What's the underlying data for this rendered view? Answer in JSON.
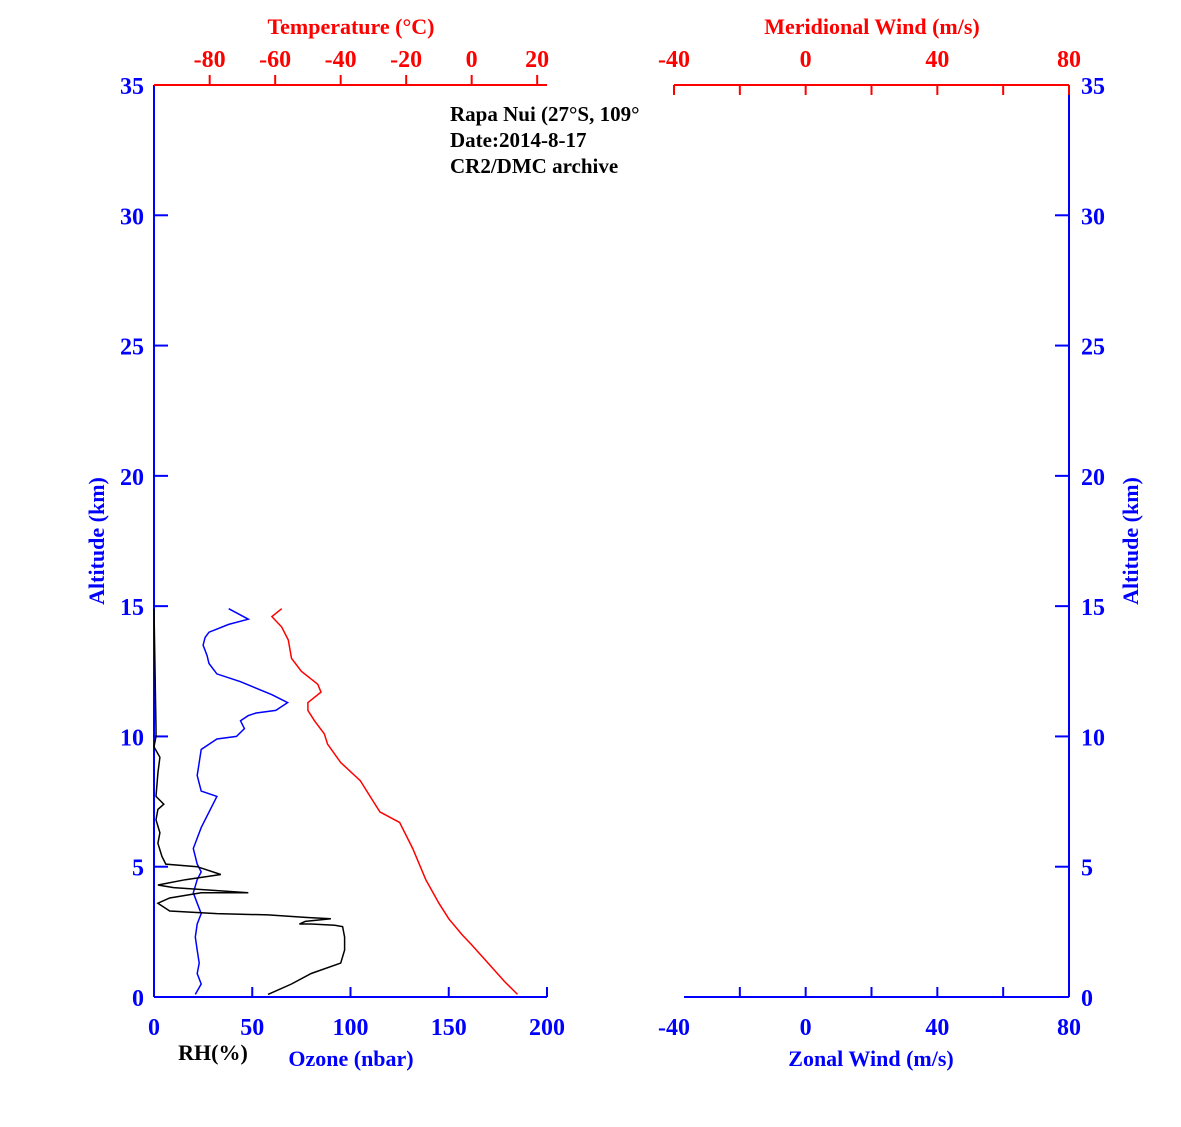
{
  "colors": {
    "axis_blue": "#0000ff",
    "axis_red": "#ff0000",
    "black": "#000000",
    "temperature_line": "#ff0000",
    "ozone_line": "#0000ff",
    "rh_line": "#000000"
  },
  "annotations": {
    "station": "Rapa Nui (27°S, 109°",
    "date": "Date:2014-8-17",
    "source": "CR2/DMC archive"
  },
  "chart_data": [
    {
      "type": "line",
      "panel": "left",
      "top_axis_label": "Temperature (°C)",
      "bottom_axis_label_rh": "RH(%)",
      "bottom_axis_label_ozone": "Ozone (nbar)",
      "left_axis_label": "Altitude (km)",
      "y_range": [
        0,
        35
      ],
      "y_ticks": [
        "0",
        "5",
        "10",
        "15",
        "20",
        "25",
        "30",
        "35"
      ],
      "top_x_range": [
        -97,
        23
      ],
      "top_ticks": [
        -80,
        -60,
        -40,
        -20,
        0,
        20
      ],
      "bottom_x_range": [
        0,
        200
      ],
      "bottom_ticks": [
        0,
        50,
        100,
        150,
        200
      ],
      "series": [
        {
          "name": "Temperature",
          "x": [
            14,
            10,
            5,
            0,
            -3,
            -7,
            -10,
            -14,
            -18,
            -22,
            -28,
            -30,
            -34,
            -40,
            -44,
            -45,
            -48,
            -50,
            -50,
            -46,
            -47,
            -52,
            -55,
            -56,
            -58,
            -61,
            -58
          ],
          "y": [
            0.1,
            0.6,
            1.3,
            2.0,
            2.4,
            3.0,
            3.6,
            4.5,
            5.7,
            6.7,
            7.1,
            7.5,
            8.3,
            9.0,
            9.7,
            10.1,
            10.6,
            11.0,
            11.3,
            11.7,
            12.0,
            12.5,
            13.0,
            13.7,
            14.2,
            14.6,
            14.9
          ]
        },
        {
          "name": "Ozone",
          "x": [
            21,
            24,
            22,
            23,
            22,
            21,
            22,
            24,
            22,
            20,
            22,
            24,
            22,
            20,
            24,
            32,
            24,
            22,
            24,
            32,
            42,
            46,
            44,
            48,
            52,
            62,
            68,
            60,
            44,
            32,
            28,
            27,
            26,
            25,
            26,
            28,
            38,
            48,
            38
          ],
          "y": [
            0.1,
            0.5,
            0.9,
            1.3,
            1.8,
            2.3,
            2.8,
            3.2,
            3.6,
            4.0,
            4.5,
            4.8,
            5.1,
            5.7,
            6.5,
            7.7,
            7.9,
            8.5,
            9.5,
            9.9,
            10.0,
            10.3,
            10.6,
            10.8,
            10.9,
            11.0,
            11.3,
            11.6,
            12.1,
            12.4,
            12.8,
            13.1,
            13.3,
            13.5,
            13.8,
            14.0,
            14.3,
            14.5,
            14.9
          ]
        },
        {
          "name": "RH",
          "x": [
            58,
            70,
            80,
            95,
            97,
            97,
            96,
            92,
            80,
            74,
            77,
            90,
            78,
            58,
            32,
            8,
            2,
            8,
            24,
            48,
            10,
            2,
            16,
            34,
            22,
            6,
            4,
            2,
            3,
            1,
            2,
            5,
            1,
            2,
            3,
            0,
            1,
            1,
            0
          ],
          "y": [
            0.1,
            0.5,
            0.9,
            1.3,
            1.8,
            2.3,
            2.7,
            2.75,
            2.8,
            2.8,
            2.9,
            3.0,
            3.05,
            3.15,
            3.2,
            3.3,
            3.6,
            3.8,
            4.0,
            4.0,
            4.2,
            4.3,
            4.5,
            4.7,
            5.0,
            5.1,
            5.4,
            5.9,
            6.3,
            6.8,
            7.2,
            7.4,
            7.7,
            8.6,
            9.2,
            9.6,
            10.0,
            10.3,
            14.9
          ]
        }
      ]
    },
    {
      "type": "line",
      "panel": "right",
      "top_axis_label": "Meridional Wind (m/s)",
      "bottom_axis_label": "Zonal Wind (m/s)",
      "right_axis_label": "Altitude (km)",
      "y_range": [
        0,
        35
      ],
      "y_ticks": [
        "0",
        "5",
        "10",
        "15",
        "20",
        "25",
        "30",
        "35"
      ],
      "top_x_range": [
        -40,
        80
      ],
      "top_ticks": [
        -40,
        0,
        40,
        80
      ],
      "bottom_x_range": [
        -40,
        80
      ],
      "bottom_ticks": [
        -40,
        0,
        40,
        80
      ],
      "series": []
    }
  ]
}
